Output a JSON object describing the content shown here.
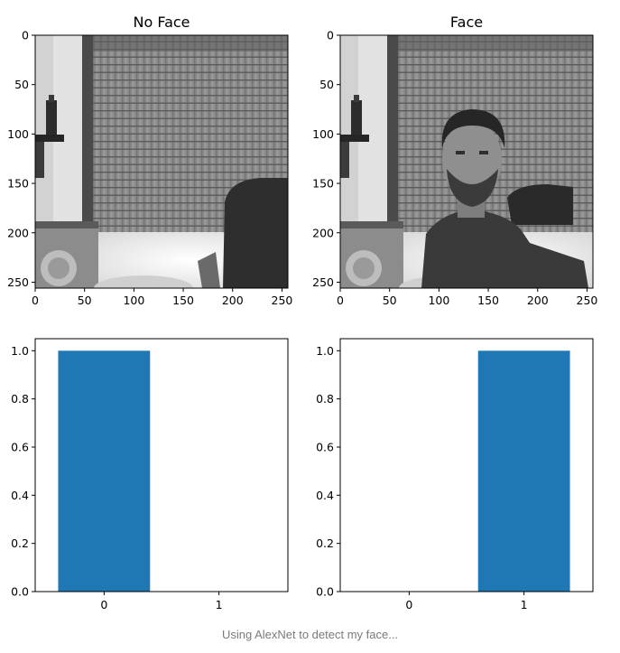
{
  "caption": "Using AlexNet to detect my face...",
  "colors": {
    "bar": "#1f77b4",
    "axis": "#000000",
    "background": "#ffffff"
  },
  "chart_data": [
    {
      "type": "image",
      "title": "No Face",
      "content": "grayscale webcam frame of a room with a roller shutter door, no person",
      "x_ticks": [
        0,
        50,
        100,
        150,
        200,
        250
      ],
      "y_ticks": [
        0,
        50,
        100,
        150,
        200,
        250
      ],
      "xlim": [
        0,
        256
      ],
      "ylim": [
        256,
        0
      ]
    },
    {
      "type": "image",
      "title": "Face",
      "content": "grayscale webcam frame of the same room with a bearded man seated in front of the shutter",
      "x_ticks": [
        0,
        50,
        100,
        150,
        200,
        250
      ],
      "y_ticks": [
        0,
        50,
        100,
        150,
        200,
        250
      ],
      "xlim": [
        0,
        256
      ],
      "ylim": [
        256,
        0
      ]
    },
    {
      "type": "bar",
      "title": "",
      "categories": [
        "0",
        "1"
      ],
      "values": [
        1.0,
        0.0
      ],
      "ylim": [
        0,
        1.05
      ],
      "y_ticks": [
        "0.0",
        "0.2",
        "0.4",
        "0.6",
        "0.8",
        "1.0"
      ],
      "xlabel": "",
      "ylabel": ""
    },
    {
      "type": "bar",
      "title": "",
      "categories": [
        "0",
        "1"
      ],
      "values": [
        0.0,
        1.0
      ],
      "ylim": [
        0,
        1.05
      ],
      "y_ticks": [
        "0.0",
        "0.2",
        "0.4",
        "0.6",
        "0.8",
        "1.0"
      ],
      "xlabel": "",
      "ylabel": ""
    }
  ]
}
